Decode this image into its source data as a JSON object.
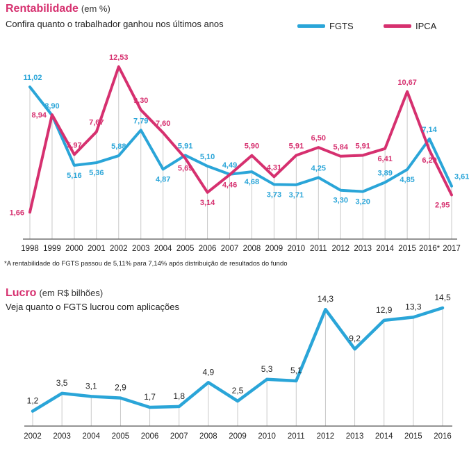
{
  "chart1": {
    "title": "Rentabilidade",
    "unit": "(em %)",
    "subtitle": "Confira quanto o trabalhador ganhou nos últimos anos",
    "footnote": "*A rentabilidade do FGTS passou de 5,11% para 7,14% após distribuição de resultados do fundo",
    "legend": [
      {
        "label": "FGTS"
      },
      {
        "label": "IPCA"
      }
    ]
  },
  "chart2": {
    "title": "Lucro",
    "unit": "(em R$ bilhões)",
    "subtitle": "Veja quanto o FGTS lucrou com aplicações"
  },
  "colors": {
    "fgts": "#2aa5d8",
    "ipca": "#d6306f",
    "grid": "#c9c9c9",
    "axis": "#555555"
  },
  "chart_data": [
    {
      "type": "line",
      "title": "Rentabilidade",
      "categories": [
        "1998",
        "1999",
        "2000",
        "2001",
        "2002",
        "2003",
        "2004",
        "2005",
        "2006",
        "2007",
        "2008",
        "2009",
        "2010",
        "2011",
        "2012",
        "2013",
        "2014",
        "2015",
        "2016*",
        "2017"
      ],
      "series": [
        {
          "name": "FGTS",
          "values": [
            11.02,
            8.9,
            5.16,
            5.36,
            5.88,
            7.79,
            4.87,
            5.91,
            5.1,
            4.49,
            4.68,
            3.73,
            3.71,
            4.25,
            3.3,
            3.2,
            3.89,
            4.85,
            7.14,
            3.61
          ],
          "labels": [
            "11,02",
            "8,90",
            "5,16",
            "5,36",
            "5,88",
            "7,79",
            "4,87",
            "5,91",
            "5,10",
            "4,49",
            "4,68",
            "3,73",
            "3,71",
            "4,25",
            "3,30",
            "3,20",
            "3,89",
            "4,85",
            "7,14",
            "3,61"
          ]
        },
        {
          "name": "IPCA",
          "values": [
            1.66,
            8.94,
            5.97,
            7.67,
            12.53,
            9.3,
            7.6,
            5.69,
            3.14,
            4.46,
            5.9,
            4.31,
            5.91,
            6.5,
            5.84,
            5.91,
            6.41,
            10.67,
            6.29,
            2.95
          ],
          "labels": [
            "1,66",
            "8,94",
            "5,97",
            "7,67",
            "12,53",
            "9,30",
            "7,60",
            "5,69",
            "3,14",
            "4,46",
            "5,90",
            "4,31",
            "5,91",
            "6,50",
            "5,84",
            "5,91",
            "6,41",
            "10,67",
            "6,29",
            "2,95"
          ]
        }
      ]
    },
    {
      "type": "area",
      "title": "Lucro",
      "categories": [
        "2002",
        "2003",
        "2004",
        "2005",
        "2006",
        "2007",
        "2008",
        "2009",
        "2010",
        "2011",
        "2012",
        "2013",
        "2014",
        "2015",
        "2016"
      ],
      "series": [
        {
          "values": [
            1.2,
            3.5,
            3.1,
            2.9,
            1.7,
            1.8,
            4.9,
            2.5,
            5.3,
            5.1,
            14.3,
            9.2,
            12.9,
            13.3,
            14.5
          ],
          "labels": [
            "1,2",
            "3,5",
            "3,1",
            "2,9",
            "1,7",
            "1,8",
            "4,9",
            "2,5",
            "5,3",
            "5,1",
            "14,3",
            "9,2",
            "12,9",
            "13,3",
            "14,5"
          ]
        }
      ]
    }
  ]
}
